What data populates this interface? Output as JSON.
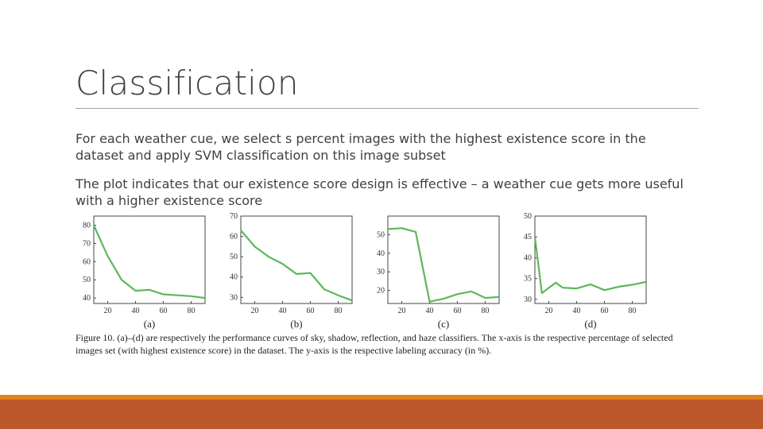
{
  "slide": {
    "title": "Classification",
    "bullets": [
      "For each weather cue, we select s percent images with the highest existence score in the dataset and apply SVM classification on this image subset",
      "The plot indicates that our existence score design is effective – a weather cue gets more useful with a higher existence score"
    ],
    "caption": "Figure 10. (a)–(d) are respectively the performance curves of sky, shadow, reflection, and haze classifiers. The x-axis is the respective percentage of selected images set (with highest existence score) in the dataset. The y-axis is the respective labeling accuracy (in %).",
    "line_color": "#5cb85c",
    "footer_colors": {
      "thin": "#e0851f",
      "thick": "#bd582c"
    }
  },
  "chart_data": [
    {
      "type": "line",
      "label": "(a)",
      "x": [
        10,
        20,
        30,
        40,
        50,
        60,
        70,
        80,
        90
      ],
      "y": [
        80,
        63,
        50,
        44,
        44.5,
        42,
        41.5,
        41,
        40
      ],
      "xticks": [
        20,
        40,
        60,
        80
      ],
      "yticks": [
        40,
        50,
        60,
        70,
        80
      ],
      "xlim": [
        10,
        90
      ],
      "ylim": [
        37,
        85
      ]
    },
    {
      "type": "line",
      "label": "(b)",
      "x": [
        10,
        20,
        30,
        40,
        50,
        60,
        70,
        80,
        90
      ],
      "y": [
        63,
        55,
        50,
        46.5,
        41.5,
        42,
        34,
        31,
        28.5
      ],
      "xticks": [
        20,
        40,
        60,
        80
      ],
      "yticks": [
        30,
        40,
        50,
        60,
        70
      ],
      "xlim": [
        10,
        90
      ],
      "ylim": [
        27,
        70
      ]
    },
    {
      "type": "line",
      "label": "(c)",
      "x": [
        10,
        20,
        30,
        40,
        50,
        60,
        70,
        80,
        90
      ],
      "y": [
        53,
        53.5,
        51.5,
        14,
        15.5,
        18,
        19.5,
        16,
        16.5
      ],
      "xticks": [
        20,
        40,
        60,
        80
      ],
      "yticks": [
        20,
        30,
        40,
        50
      ],
      "xlim": [
        10,
        90
      ],
      "ylim": [
        13,
        60
      ]
    },
    {
      "type": "line",
      "label": "(d)",
      "x": [
        10,
        15,
        25,
        30,
        40,
        50,
        60,
        70,
        80,
        90
      ],
      "y": [
        45,
        31.5,
        34,
        32.8,
        32.6,
        33.6,
        32.2,
        33,
        33.5,
        34.2
      ],
      "xticks": [
        20,
        40,
        60,
        80
      ],
      "yticks": [
        30,
        35,
        40,
        45,
        50
      ],
      "xlim": [
        10,
        90
      ],
      "ylim": [
        29,
        50
      ]
    }
  ]
}
